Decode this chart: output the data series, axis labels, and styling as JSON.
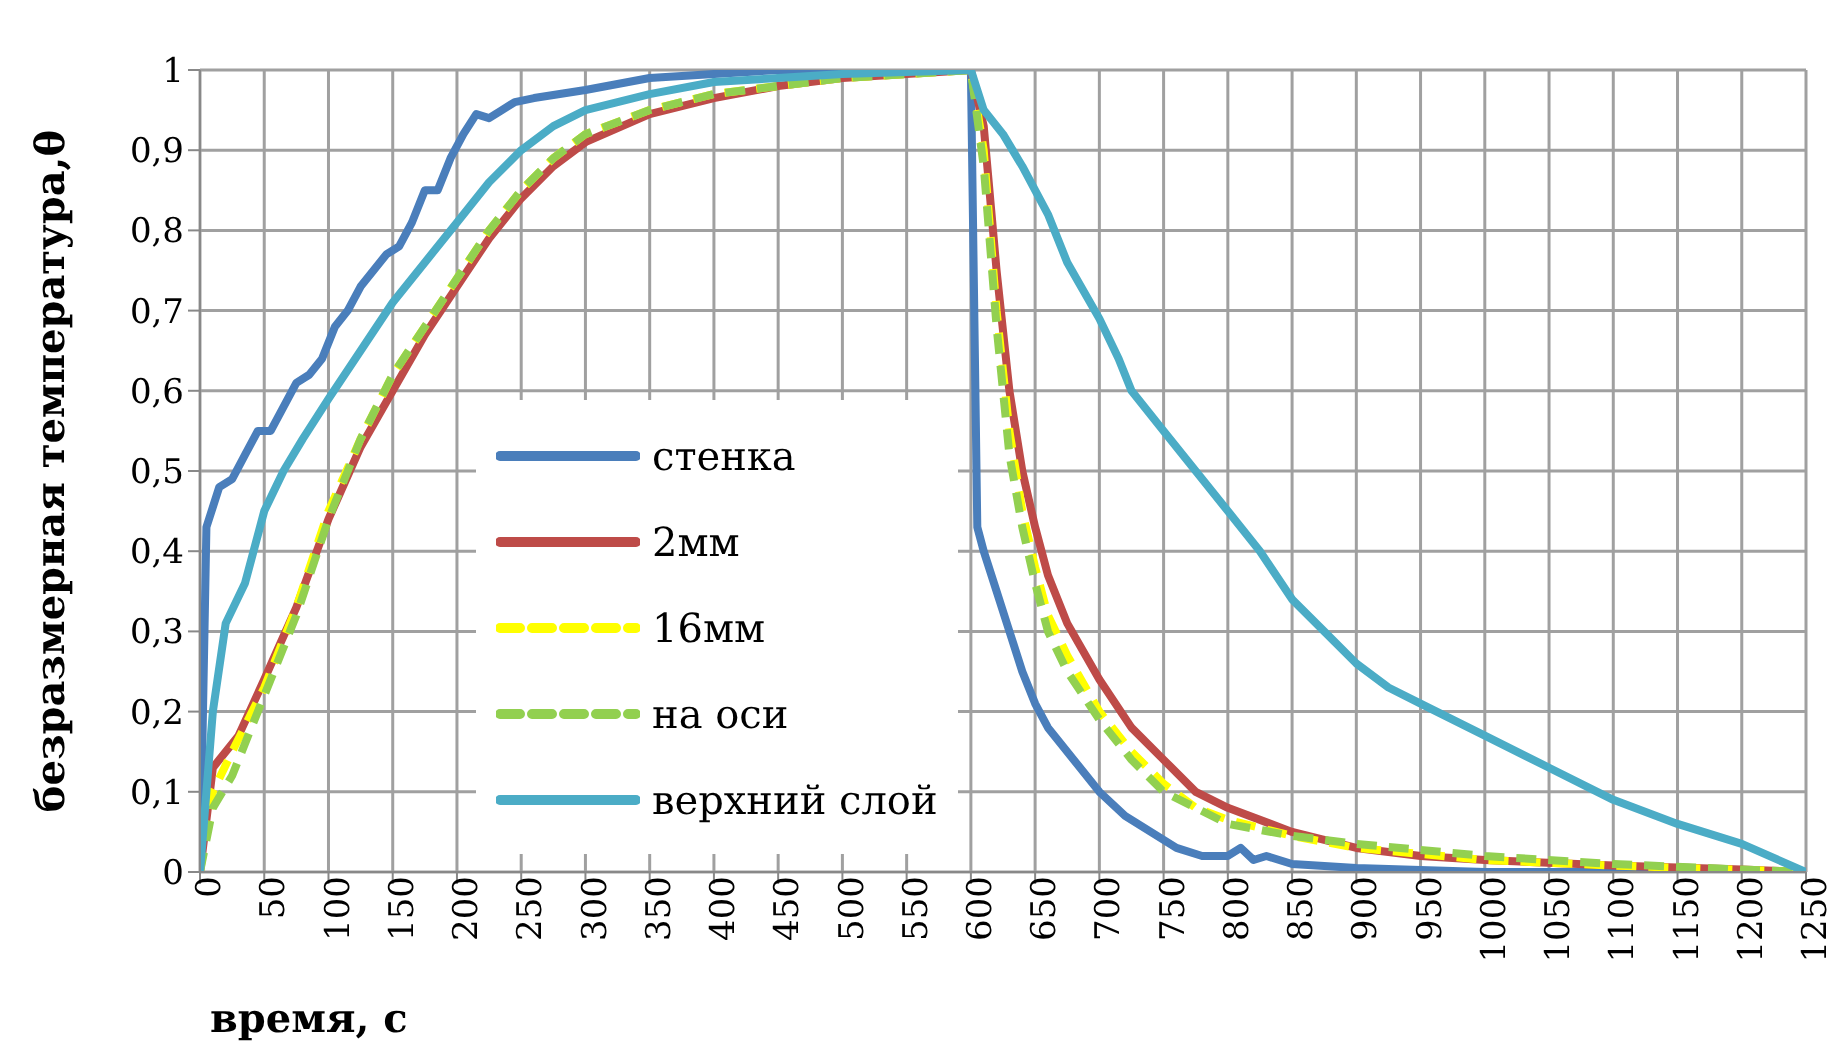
{
  "chart_data": {
    "type": "line",
    "xlabel": "время, с",
    "ylabel": "безразмерная температура,θ",
    "xlim": [
      0,
      1250
    ],
    "xticks": [
      0,
      50,
      100,
      150,
      200,
      250,
      300,
      350,
      400,
      450,
      500,
      550,
      600,
      650,
      700,
      750,
      800,
      850,
      900,
      950,
      1000,
      1050,
      1100,
      1150,
      1200,
      1250
    ],
    "ylim": [
      0,
      1
    ],
    "yticks": [
      0,
      {
        "value": 0.1,
        "label": "0,1"
      },
      {
        "value": 0.2,
        "label": "0,2"
      },
      {
        "value": 0.3,
        "label": "0,3"
      },
      {
        "value": 0.4,
        "label": "0,4"
      },
      {
        "value": 0.5,
        "label": "0,5"
      },
      {
        "value": 0.6,
        "label": "0,6"
      },
      {
        "value": 0.7,
        "label": "0,7"
      },
      {
        "value": 0.8,
        "label": "0,8"
      },
      {
        "value": 0.9,
        "label": "0,9"
      },
      1
    ],
    "grid": true,
    "legend": "left",
    "series": [
      {
        "name": "стенка",
        "color": "#4a7ebb",
        "line_style": "solid",
        "x": [
          0,
          5,
          15,
          25,
          35,
          45,
          55,
          65,
          75,
          85,
          95,
          105,
          115,
          125,
          135,
          145,
          155,
          165,
          175,
          185,
          195,
          205,
          215,
          225,
          235,
          245,
          260,
          280,
          300,
          350,
          400,
          450,
          600,
          605,
          610,
          620,
          630,
          640,
          650,
          660,
          680,
          700,
          720,
          740,
          760,
          780,
          800,
          810,
          820,
          830,
          850,
          900,
          1000,
          1250
        ],
        "values": [
          0,
          0.43,
          0.48,
          0.49,
          0.52,
          0.55,
          0.55,
          0.58,
          0.61,
          0.62,
          0.64,
          0.68,
          0.7,
          0.73,
          0.75,
          0.77,
          0.78,
          0.81,
          0.85,
          0.85,
          0.89,
          0.92,
          0.945,
          0.94,
          0.95,
          0.96,
          0.965,
          0.97,
          0.975,
          0.99,
          0.995,
          1,
          1,
          0.43,
          0.4,
          0.35,
          0.3,
          0.25,
          0.21,
          0.18,
          0.14,
          0.1,
          0.07,
          0.05,
          0.03,
          0.02,
          0.02,
          0.03,
          0.015,
          0.02,
          0.01,
          0.005,
          0,
          0
        ]
      },
      {
        "name": "2мм",
        "color": "#be4b48",
        "line_style": "solid",
        "x": [
          0,
          10,
          20,
          30,
          50,
          75,
          100,
          125,
          150,
          175,
          200,
          225,
          250,
          275,
          300,
          350,
          400,
          450,
          500,
          550,
          600,
          610,
          620,
          630,
          640,
          650,
          660,
          675,
          700,
          725,
          750,
          775,
          800,
          850,
          900,
          950,
          1000,
          1100,
          1200,
          1250
        ],
        "values": [
          0,
          0.13,
          0.15,
          0.17,
          0.24,
          0.33,
          0.44,
          0.53,
          0.6,
          0.67,
          0.73,
          0.79,
          0.84,
          0.88,
          0.91,
          0.945,
          0.965,
          0.98,
          0.99,
          0.995,
          1,
          0.93,
          0.75,
          0.6,
          0.5,
          0.43,
          0.37,
          0.31,
          0.24,
          0.18,
          0.14,
          0.1,
          0.08,
          0.05,
          0.03,
          0.02,
          0.015,
          0.008,
          0.003,
          0
        ]
      },
      {
        "name": "16мм",
        "color": "#ffff00",
        "line_style": "dashed",
        "x": [
          0,
          10,
          25,
          50,
          75,
          100,
          125,
          150,
          175,
          200,
          225,
          250,
          275,
          300,
          350,
          400,
          450,
          500,
          600,
          610,
          620,
          630,
          640,
          650,
          660,
          675,
          700,
          725,
          750,
          775,
          800,
          850,
          900,
          1000,
          1100,
          1250
        ],
        "values": [
          0,
          0.1,
          0.15,
          0.23,
          0.33,
          0.45,
          0.54,
          0.62,
          0.68,
          0.74,
          0.8,
          0.85,
          0.89,
          0.92,
          0.95,
          0.97,
          0.98,
          0.99,
          1,
          0.9,
          0.7,
          0.55,
          0.45,
          0.38,
          0.32,
          0.27,
          0.2,
          0.15,
          0.11,
          0.08,
          0.065,
          0.045,
          0.03,
          0.015,
          0.008,
          0
        ]
      },
      {
        "name": "на оси",
        "color": "#92d050",
        "line_style": "dashed",
        "x": [
          0,
          10,
          25,
          50,
          75,
          100,
          125,
          150,
          175,
          200,
          225,
          250,
          275,
          300,
          350,
          400,
          450,
          500,
          600,
          610,
          620,
          630,
          640,
          650,
          660,
          675,
          700,
          725,
          750,
          775,
          800,
          850,
          900,
          1000,
          1100,
          1200,
          1250
        ],
        "values": [
          0,
          0.08,
          0.12,
          0.22,
          0.32,
          0.44,
          0.54,
          0.62,
          0.68,
          0.74,
          0.8,
          0.85,
          0.89,
          0.92,
          0.95,
          0.97,
          0.98,
          0.99,
          1,
          0.88,
          0.68,
          0.52,
          0.43,
          0.36,
          0.3,
          0.25,
          0.19,
          0.14,
          0.1,
          0.08,
          0.06,
          0.045,
          0.035,
          0.02,
          0.01,
          0.003,
          0
        ]
      },
      {
        "name": "верхний слой",
        "color": "#4bacc6",
        "line_style": "solid",
        "x": [
          0,
          10,
          20,
          35,
          50,
          65,
          80,
          100,
          125,
          150,
          175,
          200,
          225,
          250,
          275,
          300,
          350,
          400,
          450,
          500,
          600,
          610,
          625,
          640,
          660,
          675,
          700,
          715,
          725,
          750,
          775,
          800,
          825,
          850,
          875,
          900,
          925,
          950,
          1000,
          1050,
          1100,
          1150,
          1200,
          1250
        ],
        "values": [
          0,
          0.2,
          0.31,
          0.36,
          0.45,
          0.5,
          0.54,
          0.59,
          0.65,
          0.71,
          0.76,
          0.81,
          0.86,
          0.9,
          0.93,
          0.95,
          0.97,
          0.985,
          0.99,
          0.995,
          1,
          0.95,
          0.92,
          0.88,
          0.82,
          0.76,
          0.69,
          0.64,
          0.6,
          0.55,
          0.5,
          0.45,
          0.4,
          0.34,
          0.3,
          0.26,
          0.23,
          0.21,
          0.17,
          0.13,
          0.09,
          0.06,
          0.035,
          0
        ]
      }
    ]
  }
}
